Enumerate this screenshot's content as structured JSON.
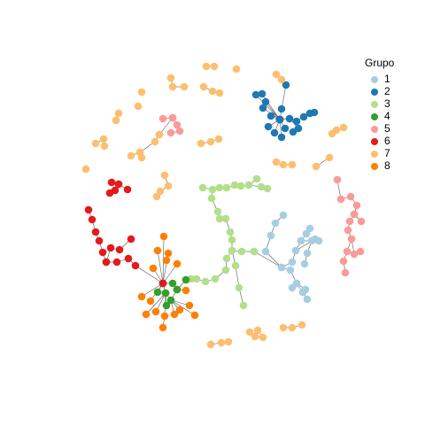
{
  "legend": {
    "title": "Grupo",
    "items": [
      {
        "label": "1",
        "color": "#a6cee3"
      },
      {
        "label": "2",
        "color": "#1f78b4"
      },
      {
        "label": "3",
        "color": "#b2df8a"
      },
      {
        "label": "4",
        "color": "#33a02c"
      },
      {
        "label": "5",
        "color": "#fb9a99"
      },
      {
        "label": "6",
        "color": "#e31a1c"
      },
      {
        "label": "7",
        "color": "#fdbf6f"
      },
      {
        "label": "8",
        "color": "#ff7f00"
      }
    ]
  }
}
